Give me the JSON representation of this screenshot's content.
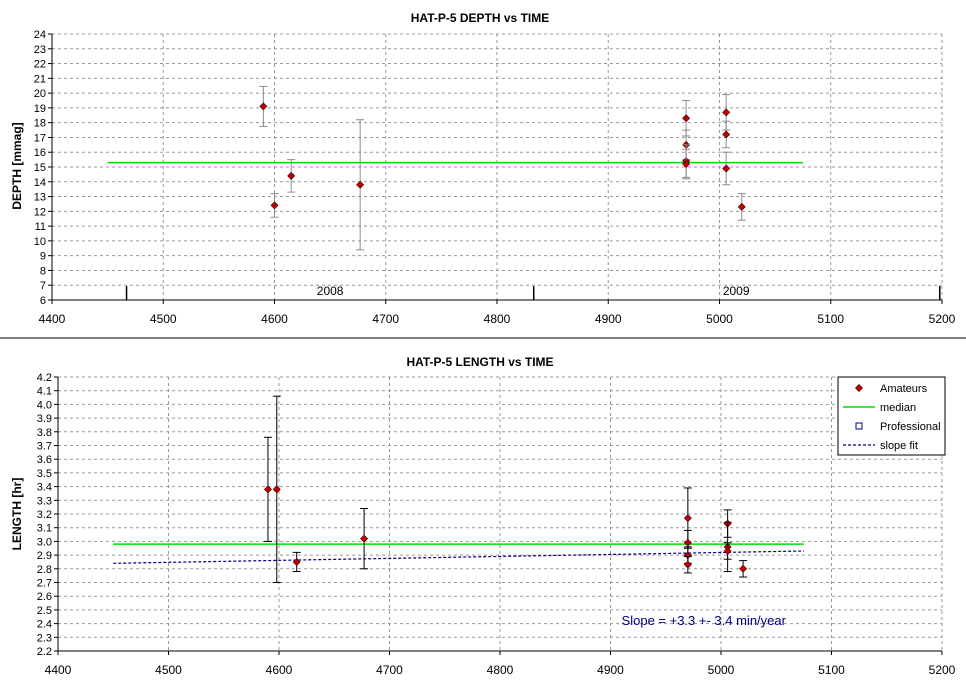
{
  "chart_data": [
    {
      "type": "scatter",
      "title": "HAT-P-5 DEPTH vs TIME",
      "xlabel": "",
      "ylabel": "DEPTH [mmag]",
      "xlim": [
        4400,
        5200
      ],
      "ylim": [
        6,
        24
      ],
      "x_ticks": [
        "4400",
        "4500",
        "4600",
        "4700",
        "4800",
        "4900",
        "5000",
        "5100",
        "5200"
      ],
      "y_ticks": [
        "6",
        "7",
        "8",
        "9",
        "10",
        "11",
        "12",
        "13",
        "14",
        "15",
        "16",
        "17",
        "18",
        "19",
        "20",
        "21",
        "22",
        "23",
        "24"
      ],
      "grid": true,
      "year_labels": [
        "2008",
        "2009"
      ],
      "series": [
        {
          "name": "",
          "marker": "diamond",
          "color": "#c00000",
          "points": [
            {
              "x": 4590,
              "y": 19.1,
              "err": 1.35
            },
            {
              "x": 4600,
              "y": 12.4,
              "err": 0.8
            },
            {
              "x": 4615,
              "y": 14.4,
              "err": 1.1
            },
            {
              "x": 4677,
              "y": 13.8,
              "err": 4.4
            },
            {
              "x": 4970,
              "y": 18.3,
              "err": 1.2
            },
            {
              "x": 4970,
              "y": 16.5,
              "err": 1.0
            },
            {
              "x": 4970,
              "y": 15.4,
              "err": 1.1
            },
            {
              "x": 4970,
              "y": 15.2,
              "err": 1.0
            },
            {
              "x": 5006,
              "y": 18.7,
              "err": 1.2
            },
            {
              "x": 5006,
              "y": 17.2,
              "err": 0.9
            },
            {
              "x": 5006,
              "y": 14.9,
              "err": 1.1
            },
            {
              "x": 5020,
              "y": 12.3,
              "err": 0.9
            }
          ]
        }
      ],
      "median": {
        "y": 15.3,
        "x_range": [
          4450,
          5075
        ],
        "color": "#00dd00"
      }
    },
    {
      "type": "scatter",
      "title": "HAT-P-5 LENGTH vs TIME",
      "xlabel": "",
      "ylabel": "LENGTH [hr]",
      "xlim": [
        4400,
        5200
      ],
      "ylim": [
        2.2,
        4.2
      ],
      "x_ticks": [
        "4400",
        "4500",
        "4600",
        "4700",
        "4800",
        "4900",
        "5000",
        "5100",
        "5200"
      ],
      "y_ticks": [
        "2.2",
        "2.3",
        "2.4",
        "2.5",
        "2.6",
        "2.7",
        "2.8",
        "2.9",
        "3.0",
        "3.1",
        "3.2",
        "3.3",
        "3.4",
        "3.5",
        "3.6",
        "3.7",
        "3.8",
        "3.9",
        "4.0",
        "4.1",
        "4.2"
      ],
      "grid": true,
      "legend_position": "top-right",
      "legend": [
        {
          "label": "Amateurs",
          "kind": "diamond",
          "color": "#c00000"
        },
        {
          "label": "median",
          "kind": "line",
          "color": "#00dd00"
        },
        {
          "label": "Professional",
          "kind": "square",
          "color": "#000080"
        },
        {
          "label": "slope fit",
          "kind": "dashed",
          "color": "#000080"
        }
      ],
      "annotation": "Slope = +3.3 +- 3.4 min/year",
      "series": [
        {
          "name": "Amateurs",
          "marker": "diamond",
          "color": "#c00000",
          "points": [
            {
              "x": 4590,
              "y": 3.38,
              "err": 0.38
            },
            {
              "x": 4598,
              "y": 3.38,
              "err": 0.68
            },
            {
              "x": 4616,
              "y": 2.85,
              "err": 0.07
            },
            {
              "x": 4677,
              "y": 3.02,
              "err": 0.22
            },
            {
              "x": 4970,
              "y": 3.17,
              "err": 0.22
            },
            {
              "x": 4970,
              "y": 2.99,
              "err": 0.09
            },
            {
              "x": 4970,
              "y": 2.9,
              "err": 0.06
            },
            {
              "x": 4970,
              "y": 2.83,
              "err": 0.06
            },
            {
              "x": 5006,
              "y": 3.13,
              "err": 0.1
            },
            {
              "x": 5006,
              "y": 2.96,
              "err": 0.18
            },
            {
              "x": 5006,
              "y": 2.93,
              "err": 0.06
            },
            {
              "x": 5020,
              "y": 2.8,
              "err": 0.06
            }
          ]
        }
      ],
      "median": {
        "y": 2.98,
        "x_range": [
          4450,
          5075
        ],
        "color": "#00dd00"
      },
      "slope_fit": {
        "x": [
          4450,
          5075
        ],
        "y": [
          2.84,
          2.93
        ],
        "color": "#000080"
      }
    }
  ]
}
